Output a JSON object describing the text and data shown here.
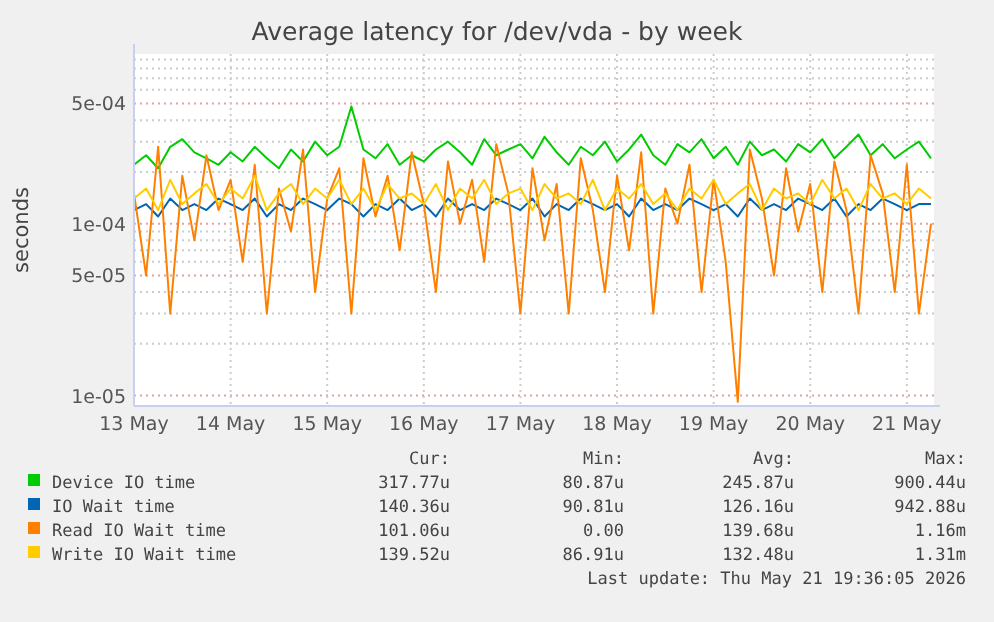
{
  "chart_data": {
    "type": "line",
    "title": "Average latency for /dev/vda - by week",
    "ylabel": "seconds",
    "log": "y",
    "grid": true,
    "legend": "bottom",
    "marker": "none",
    "line_style": "solid",
    "xlim": [
      "2026-05-13T00:00",
      "2026-05-21T06:45"
    ],
    "xticks": [
      {
        "value": "2026-05-13",
        "label": "13 May"
      },
      {
        "value": "2026-05-14",
        "label": "14 May"
      },
      {
        "value": "2026-05-15",
        "label": "15 May"
      },
      {
        "value": "2026-05-16",
        "label": "16 May"
      },
      {
        "value": "2026-05-17",
        "label": "17 May"
      },
      {
        "value": "2026-05-18",
        "label": "18 May"
      },
      {
        "value": "2026-05-19",
        "label": "19 May"
      },
      {
        "value": "2026-05-20",
        "label": "20 May"
      },
      {
        "value": "2026-05-21",
        "label": "21 May"
      }
    ],
    "ylim": [
      8.7e-06,
      0.00097
    ],
    "yticks": [
      {
        "value": 1e-05,
        "label": "1e-05"
      },
      {
        "value": 2e-05,
        "label": null
      },
      {
        "value": 3e-05,
        "label": null
      },
      {
        "value": 4e-05,
        "label": null
      },
      {
        "value": 5e-05,
        "label": "5e-05"
      },
      {
        "value": 6e-05,
        "label": null
      },
      {
        "value": 7e-05,
        "label": null
      },
      {
        "value": 8e-05,
        "label": null
      },
      {
        "value": 9e-05,
        "label": null
      },
      {
        "value": 0.0001,
        "label": "1e-04"
      },
      {
        "value": 0.0002,
        "label": null
      },
      {
        "value": 0.0003,
        "label": null
      },
      {
        "value": 0.0004,
        "label": null
      },
      {
        "value": 0.0005,
        "label": "5e-04"
      },
      {
        "value": 0.0006,
        "label": null
      },
      {
        "value": 0.0007,
        "label": null
      },
      {
        "value": 0.0008,
        "label": null
      },
      {
        "value": 0.0009,
        "label": null
      }
    ],
    "x": [
      "2026-05-13T00:00",
      "2026-05-13T03:00",
      "2026-05-13T06:00",
      "2026-05-13T09:00",
      "2026-05-13T12:00",
      "2026-05-13T15:00",
      "2026-05-13T18:00",
      "2026-05-13T21:00",
      "2026-05-14T00:00",
      "2026-05-14T03:00",
      "2026-05-14T06:00",
      "2026-05-14T09:00",
      "2026-05-14T12:00",
      "2026-05-14T15:00",
      "2026-05-14T18:00",
      "2026-05-14T21:00",
      "2026-05-15T00:00",
      "2026-05-15T03:00",
      "2026-05-15T06:00",
      "2026-05-15T09:00",
      "2026-05-15T12:00",
      "2026-05-15T15:00",
      "2026-05-15T18:00",
      "2026-05-15T21:00",
      "2026-05-16T00:00",
      "2026-05-16T03:00",
      "2026-05-16T06:00",
      "2026-05-16T09:00",
      "2026-05-16T12:00",
      "2026-05-16T15:00",
      "2026-05-16T18:00",
      "2026-05-16T21:00",
      "2026-05-17T00:00",
      "2026-05-17T03:00",
      "2026-05-17T06:00",
      "2026-05-17T09:00",
      "2026-05-17T12:00",
      "2026-05-17T15:00",
      "2026-05-17T18:00",
      "2026-05-17T21:00",
      "2026-05-18T00:00",
      "2026-05-18T03:00",
      "2026-05-18T06:00",
      "2026-05-18T09:00",
      "2026-05-18T12:00",
      "2026-05-18T15:00",
      "2026-05-18T18:00",
      "2026-05-18T21:00",
      "2026-05-19T00:00",
      "2026-05-19T03:00",
      "2026-05-19T06:00",
      "2026-05-19T09:00",
      "2026-05-19T12:00",
      "2026-05-19T15:00",
      "2026-05-19T18:00",
      "2026-05-19T21:00",
      "2026-05-20T00:00",
      "2026-05-20T03:00",
      "2026-05-20T06:00",
      "2026-05-20T09:00",
      "2026-05-20T12:00",
      "2026-05-20T15:00",
      "2026-05-20T18:00",
      "2026-05-20T21:00",
      "2026-05-21T00:00",
      "2026-05-21T03:00",
      "2026-05-21T06:00"
    ],
    "series": [
      {
        "name": "Device IO time",
        "color": "#00cc00",
        "values": [
          0.00022,
          0.00025,
          0.00021,
          0.00028,
          0.00031,
          0.00026,
          0.00024,
          0.00022,
          0.00026,
          0.00023,
          0.00028,
          0.00024,
          0.00021,
          0.00027,
          0.00023,
          0.0003,
          0.00025,
          0.00028,
          0.00048,
          0.00027,
          0.00024,
          0.00029,
          0.00022,
          0.00025,
          0.00023,
          0.00027,
          0.0003,
          0.00026,
          0.00022,
          0.00031,
          0.00025,
          0.00027,
          0.00029,
          0.00024,
          0.00032,
          0.00026,
          0.00022,
          0.00028,
          0.00025,
          0.0003,
          0.00023,
          0.00027,
          0.00033,
          0.00025,
          0.00022,
          0.00029,
          0.00026,
          0.00031,
          0.00024,
          0.00028,
          0.00022,
          0.0003,
          0.00025,
          0.00027,
          0.00023,
          0.00029,
          0.00026,
          0.00031,
          0.00024,
          0.00028,
          0.00033,
          0.00025,
          0.00029,
          0.00024,
          0.00027,
          0.0003,
          0.00024
        ]
      },
      {
        "name": "IO Wait time",
        "color": "#0066b3",
        "values": [
          0.00012,
          0.00013,
          0.00011,
          0.00014,
          0.00012,
          0.00013,
          0.00012,
          0.00014,
          0.00013,
          0.00012,
          0.00014,
          0.00011,
          0.00013,
          0.00012,
          0.00014,
          0.00013,
          0.00012,
          0.00014,
          0.00013,
          0.00011,
          0.00013,
          0.00012,
          0.00014,
          0.00012,
          0.00013,
          0.00011,
          0.00014,
          0.00012,
          0.00013,
          0.00012,
          0.00014,
          0.00013,
          0.00012,
          0.00014,
          0.00011,
          0.00013,
          0.00012,
          0.00014,
          0.00013,
          0.00012,
          0.00013,
          0.00011,
          0.00014,
          0.00012,
          0.00013,
          0.00012,
          0.00014,
          0.00013,
          0.00012,
          0.00013,
          0.00011,
          0.00014,
          0.00012,
          0.00013,
          0.00012,
          0.00014,
          0.00013,
          0.00012,
          0.00014,
          0.00011,
          0.00013,
          0.00012,
          0.00014,
          0.00013,
          0.00012,
          0.00013,
          0.00013
        ]
      },
      {
        "name": "Read IO Wait time",
        "color": "#ff8000",
        "values": [
          0.00015,
          5e-05,
          0.00028,
          3e-05,
          0.00019,
          8e-05,
          0.00025,
          0.00012,
          0.00018,
          6e-05,
          0.00022,
          3e-05,
          0.00016,
          9e-05,
          0.00027,
          4e-05,
          0.00014,
          0.00021,
          3e-05,
          0.00024,
          0.00011,
          0.00019,
          7e-05,
          0.00026,
          0.00013,
          4e-05,
          0.00023,
          0.0001,
          0.00018,
          6e-05,
          0.00029,
          0.00015,
          3e-05,
          0.00021,
          8e-05,
          0.00017,
          3e-05,
          0.00024,
          0.00012,
          4e-05,
          0.00019,
          7e-05,
          0.00026,
          3e-05,
          0.00016,
          0.0001,
          0.00022,
          4e-05,
          0.00018,
          6e-05,
          9.2e-06,
          0.00027,
          0.00014,
          5e-05,
          0.00021,
          9e-05,
          0.00017,
          4e-05,
          0.00023,
          0.00012,
          3e-05,
          0.00025,
          0.00015,
          4e-05,
          0.00022,
          3e-05,
          0.0001
        ]
      },
      {
        "name": "Write IO Wait time",
        "color": "#ffcc00",
        "values": [
          0.00014,
          0.00016,
          0.00012,
          0.00018,
          0.00013,
          0.00015,
          0.00017,
          0.00013,
          0.00016,
          0.00014,
          0.00019,
          0.00012,
          0.00015,
          0.00017,
          0.00013,
          0.00016,
          0.00014,
          0.00018,
          0.00013,
          0.00016,
          0.00012,
          0.00017,
          0.00014,
          0.00015,
          0.00013,
          0.00017,
          0.00012,
          0.00016,
          0.00014,
          0.00018,
          0.00013,
          0.00015,
          0.00016,
          0.00012,
          0.00017,
          0.00014,
          0.00015,
          0.00013,
          0.00018,
          0.00012,
          0.00016,
          0.00014,
          0.00017,
          0.00013,
          0.00015,
          0.00012,
          0.00016,
          0.00014,
          0.00018,
          0.00013,
          0.00015,
          0.00017,
          0.00012,
          0.00016,
          0.00014,
          0.00015,
          0.00013,
          0.00018,
          0.00014,
          0.00016,
          0.00012,
          0.00017,
          0.00014,
          0.00015,
          0.00013,
          0.00016,
          0.00014
        ]
      }
    ],
    "annotations": [
      "Cur:",
      "Min:",
      "Avg:",
      "Max:",
      "317.77u",
      "80.87u",
      "245.87u",
      "900.44u",
      "140.36u",
      "90.81u",
      "126.16u",
      "942.88u",
      "101.06u",
      "0.00",
      "139.68u",
      "1.16m",
      "139.52u",
      "86.91u",
      "132.48u",
      "1.31m",
      "Last update: Thu May 21 19:36:05 2026"
    ]
  }
}
